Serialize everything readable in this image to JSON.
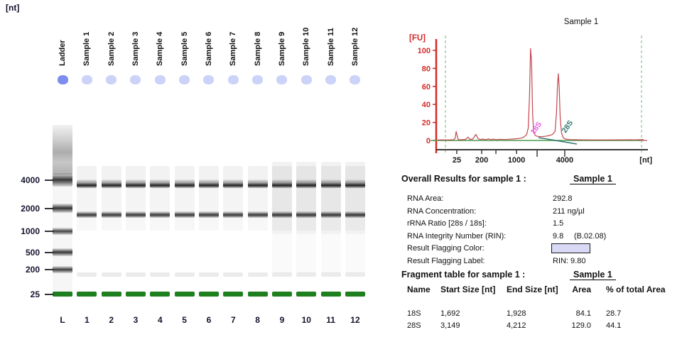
{
  "gel": {
    "unit_label": "[nt]",
    "lane_labels": [
      "Ladder",
      "Sample 1",
      "Sample 2",
      "Sample 3",
      "Sample 4",
      "Sample 5",
      "Sample 6",
      "Sample 7",
      "Sample 8",
      "Sample 9",
      "Sample 10",
      "Sample 11",
      "Sample 12"
    ],
    "lane_short_labels": [
      "L",
      "1",
      "2",
      "3",
      "4",
      "5",
      "6",
      "7",
      "8",
      "9",
      "10",
      "11",
      "12"
    ],
    "ladder_sizes": [
      "4000",
      "2000",
      "1000",
      "500",
      "200",
      "25"
    ],
    "sample_band_names": [
      "28S",
      "18S",
      "lower marker"
    ],
    "colors": {
      "ladder_well": "#7c8def",
      "sample_well": "#ccd3f8",
      "green_marker_band": "#1d7f1d"
    }
  },
  "electropherogram": {
    "title": "Sample 1",
    "y_axis_label": "[FU]",
    "x_axis_label": "[nt]",
    "y_tick_labels": [
      "0",
      "20",
      "40",
      "60",
      "80",
      "100"
    ],
    "x_tick_labels": [
      "25",
      "200",
      "1000",
      "4000"
    ],
    "peak_labels": [
      "18S",
      "28S"
    ],
    "colors": {
      "axis_red": "#d42a2a",
      "trace_red": "#c2464e",
      "dashed_green": "#90c290",
      "baseline_green": "#4f9b4f",
      "label_18s": "#e25fe2",
      "label_28s": "#2f7570",
      "axis_black": "#3a3a3a"
    }
  },
  "chart_data": {
    "type": "line",
    "title": "Sample 1",
    "xlabel": "[nt]",
    "ylabel": "[FU]",
    "x_scale": "migration-time (nonlinear in nt)",
    "ylim": [
      0,
      110
    ],
    "yticks": [
      0,
      20,
      40,
      60,
      80,
      100
    ],
    "grid": false,
    "legend": false,
    "xticks": [
      {
        "label": "25",
        "pos": 0.093,
        "long": false
      },
      {
        "label": "200",
        "pos": 0.214,
        "long": false
      },
      {
        "label": "",
        "pos": 0.283,
        "long": false
      },
      {
        "label": "1000",
        "pos": 0.383,
        "long": false
      },
      {
        "label": "",
        "pos": 0.483,
        "long": true
      },
      {
        "label": "4000",
        "pos": 0.617,
        "long": true
      }
    ],
    "peaks": [
      {
        "name": "lower marker",
        "nt": 25,
        "fu": 10
      },
      {
        "name": "18S",
        "nt": 1900,
        "fu": 102
      },
      {
        "name": "28S",
        "nt": 3800,
        "fu": 74
      }
    ],
    "trace": [
      [
        0.0,
        0.6
      ],
      [
        0.05,
        0.6
      ],
      [
        0.078,
        0.8
      ],
      [
        0.085,
        2.5
      ],
      [
        0.09,
        10
      ],
      [
        0.094,
        6
      ],
      [
        0.1,
        1.0
      ],
      [
        0.115,
        0.8
      ],
      [
        0.135,
        1.2
      ],
      [
        0.148,
        3.8
      ],
      [
        0.156,
        1.2
      ],
      [
        0.17,
        1.5
      ],
      [
        0.186,
        6.8
      ],
      [
        0.196,
        2.2
      ],
      [
        0.206,
        1.0
      ],
      [
        0.222,
        1.6
      ],
      [
        0.232,
        0.9
      ],
      [
        0.248,
        1.8
      ],
      [
        0.258,
        0.9
      ],
      [
        0.272,
        1.5
      ],
      [
        0.285,
        0.9
      ],
      [
        0.305,
        1.3
      ],
      [
        0.325,
        1.0
      ],
      [
        0.345,
        1.3
      ],
      [
        0.365,
        1.6
      ],
      [
        0.385,
        2.0
      ],
      [
        0.405,
        2.6
      ],
      [
        0.42,
        4.0
      ],
      [
        0.432,
        6.5
      ],
      [
        0.44,
        14
      ],
      [
        0.446,
        48
      ],
      [
        0.451,
        102
      ],
      [
        0.456,
        88
      ],
      [
        0.461,
        30
      ],
      [
        0.466,
        9
      ],
      [
        0.474,
        5.5
      ],
      [
        0.484,
        4.6
      ],
      [
        0.5,
        4.2
      ],
      [
        0.52,
        4.6
      ],
      [
        0.542,
        5.4
      ],
      [
        0.558,
        6.8
      ],
      [
        0.57,
        10
      ],
      [
        0.577,
        30
      ],
      [
        0.582,
        62
      ],
      [
        0.586,
        74
      ],
      [
        0.59,
        60
      ],
      [
        0.595,
        26
      ],
      [
        0.601,
        9
      ],
      [
        0.609,
        3.2
      ],
      [
        0.62,
        1.6
      ],
      [
        0.64,
        1.0
      ],
      [
        0.68,
        0.8
      ],
      [
        0.74,
        0.6
      ],
      [
        0.82,
        0.6
      ],
      [
        0.9,
        0.7
      ],
      [
        0.97,
        0.8
      ],
      [
        1.0,
        1.0
      ]
    ]
  },
  "overall_results": {
    "heading": "Overall Results for sample 1 :",
    "sample_link": "Sample 1",
    "rows": [
      {
        "label": "RNA Area:",
        "value": "292.8"
      },
      {
        "label": "RNA Concentration:",
        "value": "211 ng/µl"
      },
      {
        "label": "rRNA Ratio [28s / 18s]:",
        "value": "1.5"
      },
      {
        "label": "RNA Integrity Number (RIN):",
        "value": "9.8",
        "extra": "(B.02.08)"
      },
      {
        "label": "Result Flagging Color:",
        "value": ""
      },
      {
        "label": "Result Flagging Label:",
        "value": "RIN: 9.80"
      }
    ],
    "flag_color": "#d9d9f6"
  },
  "fragment_table": {
    "heading": "Fragment table for sample 1 :",
    "sample_link": "Sample 1",
    "columns": [
      "Name",
      "Start Size [nt]",
      "End Size [nt]",
      "Area",
      "% of total Area"
    ],
    "rows": [
      {
        "name": "18S",
        "start": "1,692",
        "end": "1,928",
        "area": "84.1",
        "pct": "28.7"
      },
      {
        "name": "28S",
        "start": "3,149",
        "end": "4,212",
        "area": "129.0",
        "pct": "44.1"
      }
    ]
  }
}
